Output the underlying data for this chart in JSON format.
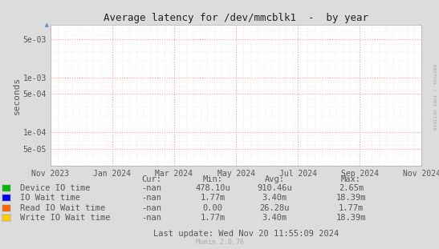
{
  "title": "Average latency for /dev/mmcblk1  -  by year",
  "ylabel": "seconds",
  "right_label": "RRDTOOL / TOBI OETIKER",
  "bg_color": "#dcdcdc",
  "plot_bg_color": "#ffffff",
  "grid_major_color": "#ff9999",
  "grid_minor_color": "#ffdddd",
  "grid_minor_x_color": "#ccddff",
  "text_color": "#555555",
  "title_color": "#222222",
  "yticks": [
    5e-05,
    0.0001,
    0.0005,
    0.001,
    0.005
  ],
  "ytick_labels": [
    "5e-05",
    "1e-04",
    "5e-04",
    "1e-03",
    "5e-03"
  ],
  "xtick_labels": [
    "Nov 2023",
    "Jan 2024",
    "Mar 2024",
    "May 2024",
    "Jul 2024",
    "Sep 2024",
    "Nov 2024"
  ],
  "ylim_min": 2.5e-05,
  "ylim_max": 0.009,
  "legend_entries": [
    {
      "label": "Device IO time",
      "color": "#00bb00"
    },
    {
      "label": "IO Wait time",
      "color": "#0000ff"
    },
    {
      "label": "Read IO Wait time",
      "color": "#ff6600"
    },
    {
      "label": "Write IO Wait time",
      "color": "#ffcc00"
    }
  ],
  "table_headers": [
    "Cur:",
    "Min:",
    "Avg:",
    "Max:"
  ],
  "table_rows": [
    [
      "-nan",
      "478.10u",
      "910.46u",
      "2.65m"
    ],
    [
      "-nan",
      "1.77m",
      "3.40m",
      "18.39m"
    ],
    [
      "-nan",
      "0.00",
      "26.28u",
      "1.77m"
    ],
    [
      "-nan",
      "1.77m",
      "3.40m",
      "18.39m"
    ]
  ],
  "last_update": "Last update: Wed Nov 20 11:55:09 2024",
  "munin_version": "Munin 2.0.76",
  "font_family": "DejaVu Sans Mono",
  "arrow_color": "#6688bb"
}
